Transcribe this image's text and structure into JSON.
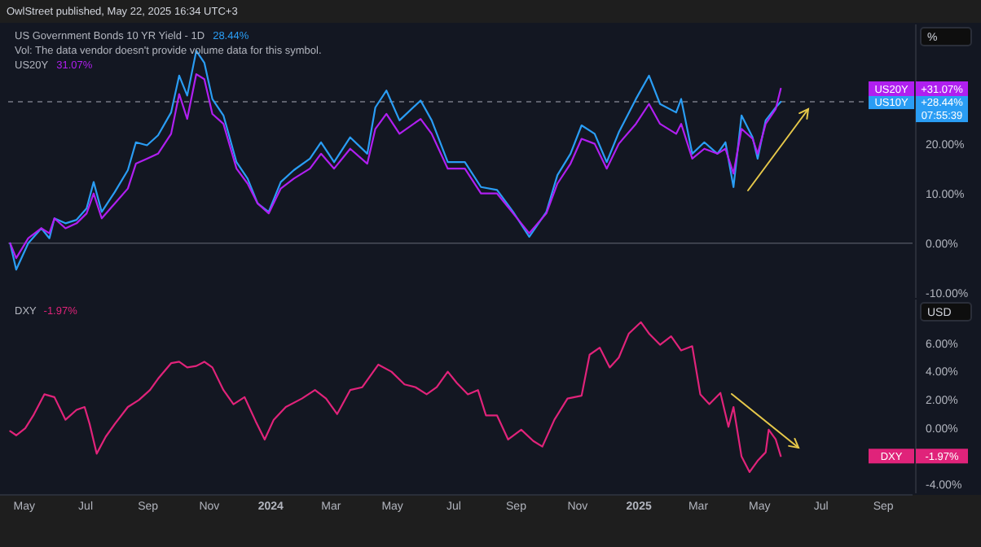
{
  "chart_data": [
    {
      "type": "line",
      "title": "US Government Bonds 10 YR Yield - 1D",
      "subtitle": "Vol: The data vendor doesn't provide volume data for this symbol.",
      "ylabel": "%",
      "legend": "top right",
      "tick_labels": "y",
      "xlim": [
        "2023-04-15",
        "2025-09-30"
      ],
      "ylim": [
        -11,
        44
      ],
      "yticks": [
        {
          "value": 20,
          "label": "20.00%"
        },
        {
          "value": 10,
          "label": "10.00%"
        },
        {
          "value": 0,
          "label": "0.00%"
        },
        {
          "value": -10,
          "label": "-10.00%"
        }
      ],
      "x": [
        "2023-04-17",
        "2023-04-23",
        "2023-05-05",
        "2023-05-18",
        "2023-05-26",
        "2023-05-31",
        "2023-06-11",
        "2023-06-22",
        "2023-07-02",
        "2023-07-09",
        "2023-07-17",
        "2023-07-30",
        "2023-08-12",
        "2023-08-20",
        "2023-08-31",
        "2023-09-11",
        "2023-09-24",
        "2023-10-02",
        "2023-10-10",
        "2023-10-19",
        "2023-10-27",
        "2023-11-04",
        "2023-11-15",
        "2023-11-28",
        "2023-12-09",
        "2023-12-19",
        "2023-12-30",
        "2024-01-11",
        "2024-01-24",
        "2024-02-09",
        "2024-02-20",
        "2024-03-04",
        "2024-03-20",
        "2024-04-06",
        "2024-04-14",
        "2024-04-25",
        "2024-05-08",
        "2024-05-29",
        "2024-06-09",
        "2024-06-25",
        "2024-07-12",
        "2024-07-28",
        "2024-08-13",
        "2024-08-29",
        "2024-09-14",
        "2024-10-01",
        "2024-10-12",
        "2024-10-25",
        "2024-11-05",
        "2024-11-18",
        "2024-11-30",
        "2024-12-12",
        "2024-12-29",
        "2025-01-11",
        "2025-01-22",
        "2025-02-07",
        "2025-02-12",
        "2025-02-23",
        "2025-03-07",
        "2025-03-20",
        "2025-03-28",
        "2025-04-05",
        "2025-04-13",
        "2025-04-24",
        "2025-04-29",
        "2025-05-07",
        "2025-05-17",
        "2025-05-22"
      ],
      "series": [
        {
          "name": "US10Y",
          "color": "#2a9df4",
          "values": [
            0,
            -5.3,
            0,
            3,
            1,
            5,
            4,
            4.7,
            7,
            12.3,
            6.3,
            10.3,
            14.7,
            20.3,
            19.7,
            21.7,
            26.3,
            33.7,
            29.7,
            38.7,
            36.3,
            29,
            25.7,
            16.3,
            13,
            8,
            6.3,
            12.3,
            14.7,
            17,
            20.3,
            16.3,
            21.3,
            18,
            27.3,
            30.7,
            24.7,
            28.7,
            24.7,
            16.3,
            16.3,
            11.3,
            10.7,
            6.3,
            1.3,
            6.3,
            13.7,
            18,
            23.7,
            22,
            16.3,
            22.3,
            29,
            33.7,
            28,
            26.3,
            29,
            18,
            20.3,
            18,
            20.3,
            11.3,
            25.7,
            21.3,
            17,
            24.7,
            27.3,
            28.44
          ]
        },
        {
          "name": "US20Y",
          "color": "#b01ff0",
          "values": [
            0,
            -3,
            1,
            3,
            2,
            5,
            3,
            4,
            6,
            10,
            5,
            8,
            11,
            16,
            17,
            18,
            22,
            30,
            25,
            34,
            33,
            26,
            24,
            15,
            12,
            8,
            6,
            11,
            13,
            15,
            18,
            15,
            19,
            16,
            23,
            26,
            22,
            25,
            22,
            15,
            15,
            10,
            10,
            6,
            2,
            6,
            12,
            16,
            21,
            20,
            15,
            20,
            24,
            28,
            24,
            22,
            24,
            17,
            19,
            18,
            19,
            14,
            23,
            21,
            18,
            24,
            27,
            31.07
          ]
        }
      ],
      "ref_lines": [
        {
          "axis": "y",
          "value": 28.44,
          "color": "#787b86",
          "line_style": "dashed"
        },
        {
          "axis": "y",
          "value": 0,
          "color": "#4a4e5a",
          "line_style": "solid"
        }
      ],
      "annotations": [
        "OwlStreet published, May 22, 2025 16:34 UTC+3",
        "28.44%",
        "31.07%",
        "+28.44%\n07:55:39",
        "+31.07%"
      ]
    },
    {
      "type": "line",
      "ylabel": "USD",
      "legend": "bottom right",
      "xlim": [
        "2023-04-15",
        "2025-09-30"
      ],
      "ylim": [
        -4.6,
        9.1
      ],
      "yticks": [
        {
          "value": 6,
          "label": "6.00%"
        },
        {
          "value": 4,
          "label": "4.00%"
        },
        {
          "value": 2,
          "label": "2.00%"
        },
        {
          "value": 0,
          "label": "0.00%"
        },
        {
          "value": -4,
          "label": "-4.00%"
        }
      ],
      "xticks": [
        {
          "value": "2023-05-01",
          "label": "May"
        },
        {
          "value": "2023-07-01",
          "label": "Jul"
        },
        {
          "value": "2023-09-01",
          "label": "Sep"
        },
        {
          "value": "2023-11-01",
          "label": "Nov"
        },
        {
          "value": "2024-01-01",
          "label": "2024"
        },
        {
          "value": "2024-03-01",
          "label": "Mar"
        },
        {
          "value": "2024-05-01",
          "label": "May"
        },
        {
          "value": "2024-07-01",
          "label": "Jul"
        },
        {
          "value": "2024-09-01",
          "label": "Sep"
        },
        {
          "value": "2024-11-01",
          "label": "Nov"
        },
        {
          "value": "2025-01-01",
          "label": "2025"
        },
        {
          "value": "2025-03-01",
          "label": "Mar"
        },
        {
          "value": "2025-05-01",
          "label": "May"
        },
        {
          "value": "2025-07-01",
          "label": "Jul"
        },
        {
          "value": "2025-09-01",
          "label": "Sep"
        }
      ],
      "x": [
        "2023-04-17",
        "2023-04-23",
        "2023-05-02",
        "2023-05-10",
        "2023-05-21",
        "2023-05-31",
        "2023-06-11",
        "2023-06-22",
        "2023-06-30",
        "2023-07-05",
        "2023-07-12",
        "2023-07-21",
        "2023-07-30",
        "2023-08-12",
        "2023-08-23",
        "2023-09-03",
        "2023-09-11",
        "2023-09-24",
        "2023-10-02",
        "2023-10-10",
        "2023-10-19",
        "2023-10-27",
        "2023-11-04",
        "2023-11-15",
        "2023-11-25",
        "2023-12-06",
        "2023-12-17",
        "2023-12-26",
        "2024-01-04",
        "2024-01-16",
        "2024-02-01",
        "2024-02-14",
        "2024-02-25",
        "2024-03-07",
        "2024-03-20",
        "2024-04-01",
        "2024-04-17",
        "2024-04-30",
        "2024-05-13",
        "2024-05-24",
        "2024-06-04",
        "2024-06-14",
        "2024-06-25",
        "2024-07-04",
        "2024-07-15",
        "2024-07-25",
        "2024-08-02",
        "2024-08-13",
        "2024-08-24",
        "2024-09-06",
        "2024-09-18",
        "2024-09-27",
        "2024-10-09",
        "2024-10-22",
        "2024-11-05",
        "2024-11-13",
        "2024-11-23",
        "2024-12-03",
        "2024-12-12",
        "2024-12-22",
        "2025-01-03",
        "2025-01-11",
        "2025-01-22",
        "2025-02-02",
        "2025-02-12",
        "2025-02-23",
        "2025-03-03",
        "2025-03-12",
        "2025-03-23",
        "2025-03-31",
        "2025-04-05",
        "2025-04-13",
        "2025-04-21",
        "2025-04-29",
        "2025-05-07",
        "2025-05-10",
        "2025-05-17",
        "2025-05-22"
      ],
      "series": [
        {
          "name": "DXY",
          "color": "#e0237a",
          "values": [
            -0.2,
            -0.5,
            0,
            0.9,
            2.4,
            2.2,
            0.6,
            1.3,
            1.5,
            0.3,
            -1.8,
            -0.6,
            0.3,
            1.5,
            2,
            2.7,
            3.5,
            4.6,
            4.7,
            4.3,
            4.4,
            4.7,
            4.3,
            2.7,
            1.7,
            2.2,
            0.5,
            -0.8,
            0.6,
            1.5,
            2.1,
            2.7,
            2.1,
            1.0,
            2.7,
            2.9,
            4.5,
            4,
            3.1,
            2.9,
            2.4,
            2.9,
            4,
            3.2,
            2.4,
            2.7,
            0.9,
            0.9,
            -0.8,
            -0.1,
            -0.9,
            -1.3,
            0.6,
            2.1,
            2.3,
            5.2,
            5.7,
            4.3,
            5,
            6.7,
            7.5,
            6.7,
            5.9,
            6.5,
            5.5,
            5.8,
            2.4,
            1.7,
            2.5,
            0.1,
            1.5,
            -2,
            -3.1,
            -2.3,
            -1.7,
            -0.1,
            -0.8,
            -1.97
          ]
        }
      ],
      "annotations": [
        "-1.97%",
        "-1.97%"
      ]
    }
  ]
}
